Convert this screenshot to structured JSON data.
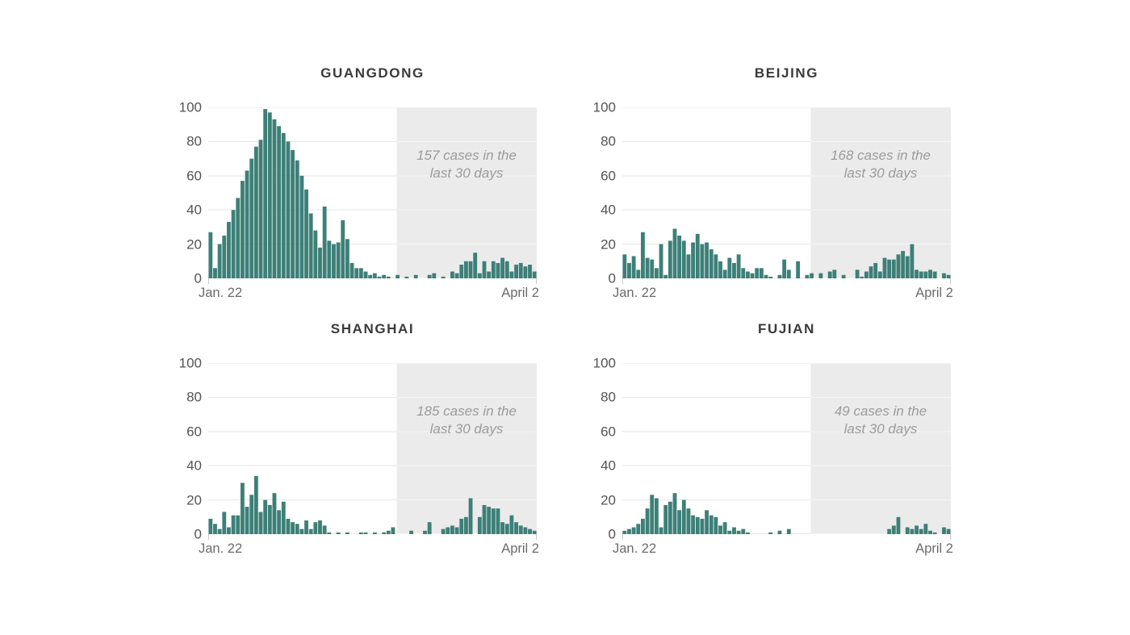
{
  "page": {
    "background": "#ffffff"
  },
  "colors": {
    "bar": "#3d8078",
    "recent_window": "#ebebeb",
    "grid": "#e6e6e6",
    "grid_on_window": "rgba(255,255,255,0.55)",
    "axis_tick": "#c8c8c8",
    "title_text": "#3a3a3a",
    "y_label_text": "#545454",
    "x_label_text": "#6b6b6b",
    "annotation_text": "#9b9b9b"
  },
  "chart_data": [
    {
      "type": "bar",
      "title": "GUANGDONG",
      "x_tick_labels": [
        "Jan. 22",
        "April 2"
      ],
      "y_ticks": [
        0,
        20,
        40,
        60,
        80,
        100
      ],
      "ylim": [
        0,
        100
      ],
      "grid": true,
      "recent_window_days": 30,
      "cases_last_30_days": 157,
      "annotation_lines": [
        "157 cases in the",
        "last 30 days"
      ],
      "values": [
        27,
        6,
        20,
        25,
        33,
        40,
        47,
        57,
        63,
        70,
        77,
        81,
        99,
        97,
        93,
        89,
        85,
        80,
        75,
        69,
        60,
        52,
        38,
        28,
        18,
        42,
        22,
        20,
        21,
        34,
        23,
        9,
        6,
        6,
        4,
        2,
        3,
        1,
        2,
        1,
        0,
        2,
        0,
        1,
        0,
        2,
        0,
        0,
        2,
        3,
        0,
        1,
        0,
        4,
        3,
        8,
        10,
        10,
        15,
        3,
        10,
        4,
        10,
        9,
        12,
        10,
        4,
        8,
        9,
        7,
        8,
        4
      ]
    },
    {
      "type": "bar",
      "title": "BEIJING",
      "x_tick_labels": [
        "Jan. 22",
        "April 2"
      ],
      "y_ticks": [
        0,
        20,
        40,
        60,
        80,
        100
      ],
      "ylim": [
        0,
        100
      ],
      "grid": true,
      "recent_window_days": 30,
      "cases_last_30_days": 168,
      "annotation_lines": [
        "168 cases in the",
        "last 30 days"
      ],
      "values": [
        14,
        9,
        13,
        5,
        27,
        12,
        11,
        6,
        20,
        2,
        22,
        29,
        25,
        22,
        14,
        21,
        26,
        20,
        21,
        17,
        14,
        10,
        5,
        12,
        9,
        14,
        6,
        4,
        3,
        6,
        6,
        2,
        1,
        0,
        2,
        11,
        5,
        0,
        10,
        0,
        2,
        3,
        0,
        3,
        0,
        4,
        5,
        0,
        2,
        0,
        0,
        5,
        1,
        4,
        7,
        9,
        4,
        12,
        11,
        11,
        14,
        16,
        13,
        20,
        5,
        4,
        4,
        5,
        4,
        0,
        3,
        2
      ]
    },
    {
      "type": "bar",
      "title": "SHANGHAI",
      "x_tick_labels": [
        "Jan. 22",
        "April 2"
      ],
      "y_ticks": [
        0,
        20,
        40,
        60,
        80,
        100
      ],
      "ylim": [
        0,
        100
      ],
      "grid": true,
      "recent_window_days": 30,
      "cases_last_30_days": 185,
      "annotation_lines": [
        "185 cases in the",
        "last 30 days"
      ],
      "values": [
        9,
        6,
        3,
        13,
        4,
        11,
        11,
        30,
        16,
        23,
        34,
        13,
        20,
        17,
        24,
        14,
        19,
        9,
        7,
        6,
        3,
        8,
        3,
        7,
        8,
        5,
        1,
        0,
        1,
        0,
        1,
        0,
        0,
        1,
        1,
        0,
        1,
        0,
        1,
        2,
        4,
        0,
        0,
        0,
        2,
        0,
        0,
        2,
        7,
        0,
        0,
        3,
        4,
        5,
        4,
        9,
        10,
        21,
        0,
        10,
        17,
        16,
        15,
        15,
        7,
        6,
        11,
        7,
        5,
        4,
        3,
        2
      ]
    },
    {
      "type": "bar",
      "title": "FUJIAN",
      "x_tick_labels": [
        "Jan. 22",
        "April 2"
      ],
      "y_ticks": [
        0,
        20,
        40,
        60,
        80,
        100
      ],
      "ylim": [
        0,
        100
      ],
      "grid": true,
      "recent_window_days": 30,
      "cases_last_30_days": 49,
      "annotation_lines": [
        "49 cases in the",
        "last 30 days"
      ],
      "values": [
        2,
        3,
        4,
        6,
        9,
        15,
        23,
        21,
        4,
        17,
        19,
        24,
        14,
        20,
        15,
        11,
        10,
        9,
        14,
        11,
        10,
        5,
        7,
        2,
        4,
        2,
        3,
        1,
        0,
        0,
        0,
        0,
        1,
        0,
        2,
        0,
        3,
        0,
        0,
        0,
        0,
        0,
        0,
        0,
        0,
        0,
        0,
        0,
        0,
        0,
        0,
        0,
        0,
        0,
        0,
        0,
        0,
        0,
        3,
        5,
        10,
        0,
        4,
        3,
        5,
        3,
        6,
        2,
        1,
        0,
        4,
        3
      ]
    }
  ]
}
